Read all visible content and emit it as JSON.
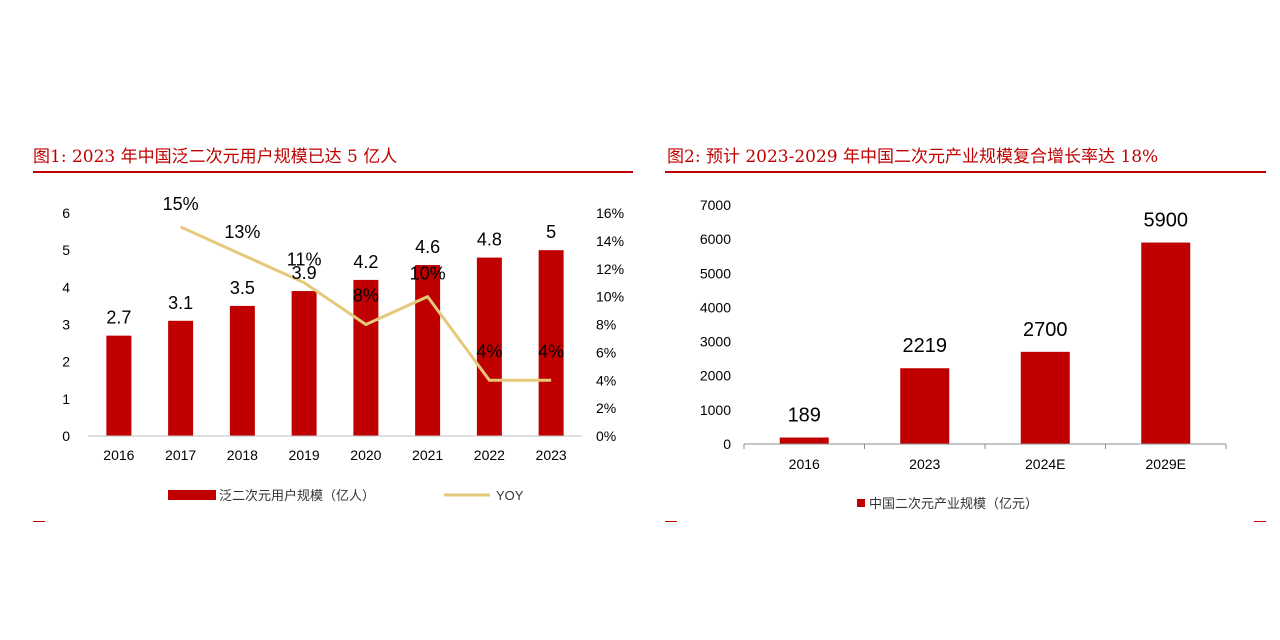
{
  "figure1": {
    "title": "图1:   2023 年中国泛二次元用户规模已达 5 亿人"
  },
  "figure2": {
    "title": "图2:   预计 2023-2029 年中国二次元产业规模复合增长率达 18%"
  },
  "colors": {
    "bar": "#c00000",
    "line": "#e6c87a",
    "accent": "#c00000",
    "axis": "#bfbfbf"
  },
  "chart_data": [
    {
      "type": "bar",
      "categories": [
        "2016",
        "2017",
        "2018",
        "2019",
        "2020",
        "2021",
        "2022",
        "2023"
      ],
      "series": [
        {
          "name": "泛二次元用户规模（亿人）",
          "type": "bar",
          "axis": "left",
          "values": [
            2.7,
            3.1,
            3.5,
            3.9,
            4.2,
            4.6,
            4.8,
            5
          ],
          "labels": [
            "2.7",
            "3.1",
            "3.5",
            "3.9",
            "4.2",
            "4.6",
            "4.8",
            "5"
          ]
        },
        {
          "name": "YOY",
          "type": "line",
          "axis": "right",
          "values": [
            null,
            15,
            13,
            11,
            8,
            10,
            4,
            4
          ],
          "labels": [
            "",
            "15%",
            "13%",
            "11%",
            "8%",
            "10%",
            "4%",
            "4%"
          ]
        }
      ],
      "ylim": [
        0,
        6
      ],
      "yticks": [
        "0",
        "1",
        "2",
        "3",
        "4",
        "5",
        "6"
      ],
      "y2lim": [
        0,
        16
      ],
      "y2ticks": [
        "0%",
        "2%",
        "4%",
        "6%",
        "8%",
        "10%",
        "12%",
        "14%",
        "16%"
      ],
      "legend": "bottom"
    },
    {
      "type": "bar",
      "categories": [
        "2016",
        "2023",
        "2024E",
        "2029E"
      ],
      "series": [
        {
          "name": "中国二次元产业规模（亿元）",
          "values": [
            189,
            2219,
            2700,
            5900
          ],
          "labels": [
            "189",
            "2219",
            "2700",
            "5900"
          ]
        }
      ],
      "ylim": [
        0,
        7000
      ],
      "yticks": [
        "0",
        "1000",
        "2000",
        "3000",
        "4000",
        "5000",
        "6000",
        "7000"
      ],
      "legend": "bottom"
    }
  ]
}
